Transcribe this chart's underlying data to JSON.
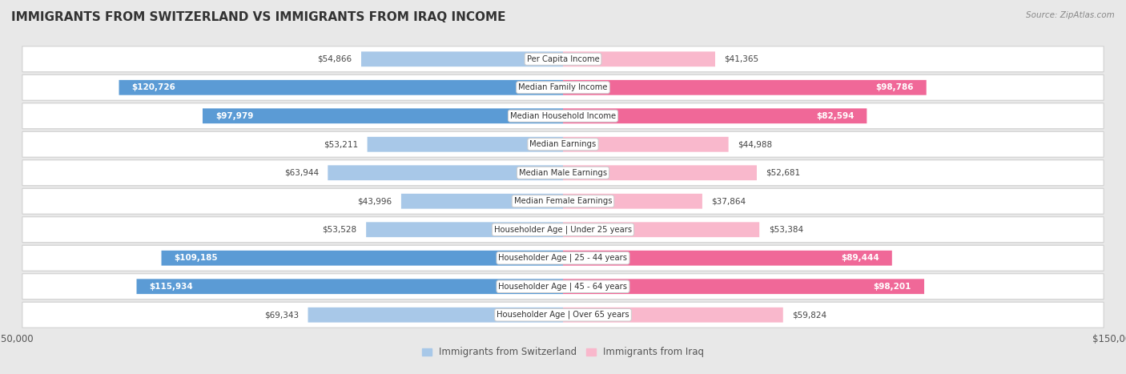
{
  "title": "IMMIGRANTS FROM SWITZERLAND VS IMMIGRANTS FROM IRAQ INCOME",
  "source": "Source: ZipAtlas.com",
  "categories": [
    "Per Capita Income",
    "Median Family Income",
    "Median Household Income",
    "Median Earnings",
    "Median Male Earnings",
    "Median Female Earnings",
    "Householder Age | Under 25 years",
    "Householder Age | 25 - 44 years",
    "Householder Age | 45 - 64 years",
    "Householder Age | Over 65 years"
  ],
  "switzerland_values": [
    54866,
    120726,
    97979,
    53211,
    63944,
    43996,
    53528,
    109185,
    115934,
    69343
  ],
  "iraq_values": [
    41365,
    98786,
    82594,
    44988,
    52681,
    37864,
    53384,
    89444,
    98201,
    59824
  ],
  "switzerland_labels": [
    "$54,866",
    "$120,726",
    "$97,979",
    "$53,211",
    "$63,944",
    "$43,996",
    "$53,528",
    "$109,185",
    "$115,934",
    "$69,343"
  ],
  "iraq_labels": [
    "$41,365",
    "$98,786",
    "$82,594",
    "$44,988",
    "$52,681",
    "$37,864",
    "$53,384",
    "$89,444",
    "$98,201",
    "$59,824"
  ],
  "sw_color_light": "#a8c8e8",
  "sw_color_dark": "#5b9bd5",
  "iq_color_light": "#f9b8cc",
  "iq_color_dark": "#f06898",
  "sw_threshold": 75000,
  "iq_threshold": 75000,
  "legend_switzerland": "Immigrants from Switzerland",
  "legend_iraq": "Immigrants from Iraq",
  "max_value": 150000,
  "page_bg": "#e8e8e8",
  "row_bg": "#ffffff",
  "row_border": "#d0d0d0"
}
